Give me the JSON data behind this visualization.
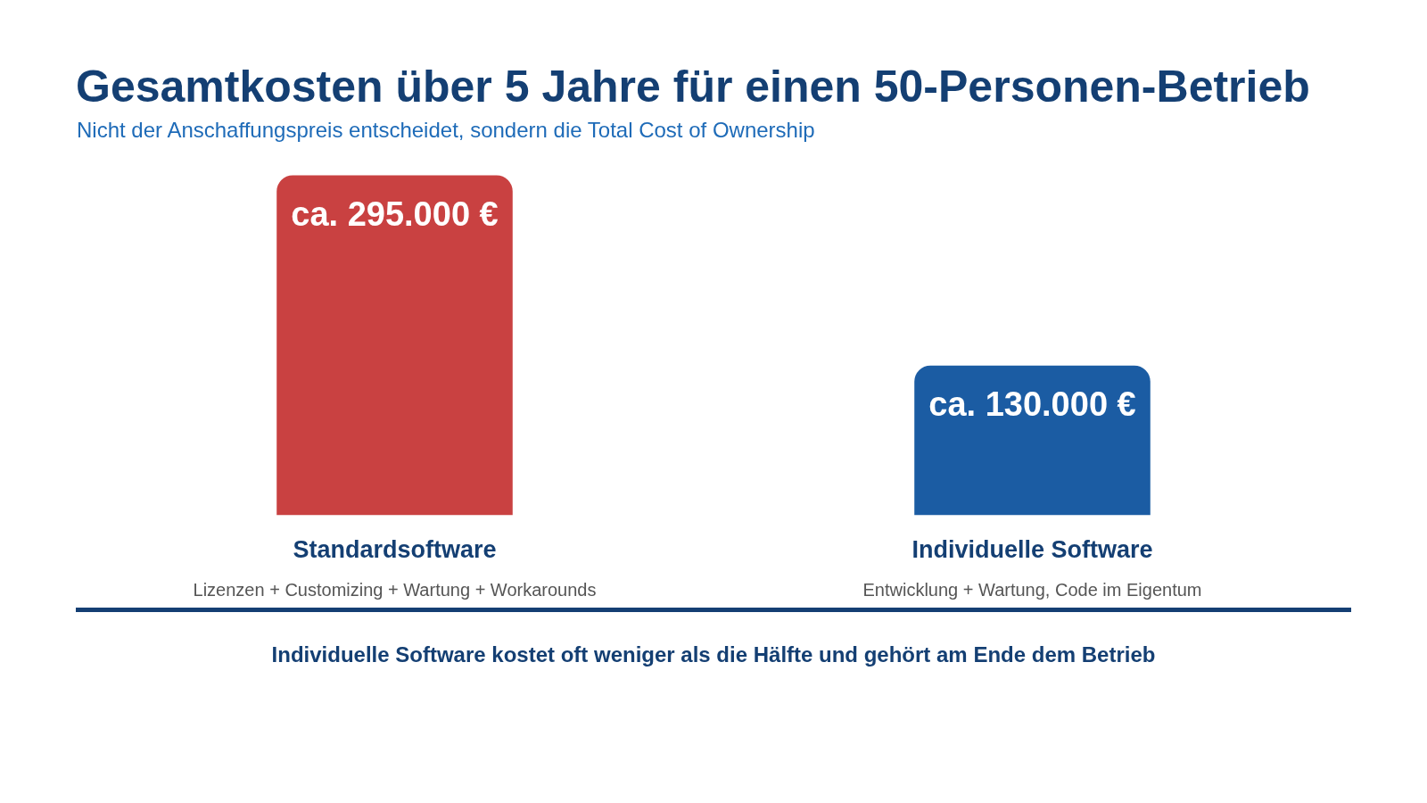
{
  "chart_data": {
    "type": "bar",
    "title": "Gesamtkosten über 5 Jahre für einen 50-Personen-Betrieb",
    "subtitle": "Nicht der Anschaffungspreis entscheidet, sondern die Total Cost of Ownership",
    "categories": [
      "Standardsoftware",
      "Individuelle Software"
    ],
    "values": [
      295000,
      130000
    ],
    "colors": [
      "#c94141",
      "#1b5ca3"
    ],
    "value_labels": [
      "ca. 295.000 €",
      "ca. 130.000 €"
    ],
    "annotations": [
      "Lizenzen + Customizing + Wartung + Workarounds",
      "Entwicklung + Wartung, Code im Eigentum",
      "Individuelle Software kostet oft weniger als die Hälfte und gehört am Ende dem Betrieb"
    ],
    "grid": false,
    "legend": false
  }
}
